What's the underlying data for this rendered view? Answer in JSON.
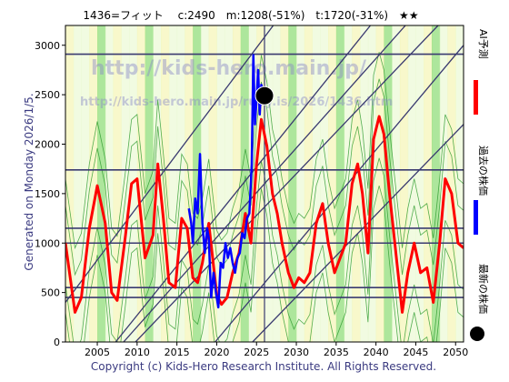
{
  "header": {
    "title": "1436=フィット　 c:2490　m:1208(-51%)　t:1720(-31%)　★★"
  },
  "side_text": "Generated on Monday 2026/1/5.",
  "watermarks": [
    "http://kids-hero.main.jp/",
    "http://kids-hero.main.jp/ruby.is/2026/1436.htm"
  ],
  "legend": [
    {
      "name": "AI予測",
      "color": "#ff0000",
      "kind": "line"
    },
    {
      "name": "過去の株価",
      "color": "#0000ff",
      "kind": "line"
    },
    {
      "name": "最新の株価",
      "color": "#000000",
      "kind": "dot"
    }
  ],
  "footer": {
    "copyright": "Copyright (c) Kids-Hero Research Institute. All Rights Reserved."
  },
  "colors": {
    "background": "#ffffff",
    "band_light": "#e6f8c8",
    "band_green": "#6ad24a",
    "band_yellow": "#f3f3a0",
    "diagonal": "#3a3a70",
    "horizontal": "#3a3a70",
    "prediction": "#ff0000",
    "history": "#0000ff"
  },
  "chart_data": {
    "type": "line",
    "title": "",
    "xlabel": "",
    "ylabel": "",
    "xlim": [
      2001.0,
      2051.0
    ],
    "ylim": [
      0,
      3200
    ],
    "x_ticks": [
      2005,
      2010,
      2015,
      2020,
      2025,
      2030,
      2035,
      2040,
      2045,
      2050
    ],
    "y_ticks": [
      0,
      500,
      1000,
      1500,
      2000,
      2500,
      3000
    ],
    "horizontal_levels": [
      2910,
      1740,
      1150,
      1000,
      550,
      450
    ],
    "vertical_lines": [
      2026.0
    ],
    "latest_price": {
      "x": 2026.0,
      "y": 2490
    },
    "diagonals": [
      {
        "x1": 2001.0,
        "y1": 400,
        "x2": 2027.1,
        "y2": 3200
      },
      {
        "x1": 2007.3,
        "y1": 0,
        "x2": 2039.3,
        "y2": 3200
      },
      {
        "x1": 2008.3,
        "y1": 0,
        "x2": 2043.7,
        "y2": 3200
      },
      {
        "x1": 2009.8,
        "y1": 0,
        "x2": 2047.8,
        "y2": 3200
      },
      {
        "x1": 2019.8,
        "y1": 0,
        "x2": 2051.0,
        "y2": 3000
      },
      {
        "x1": 2024.5,
        "y1": 0,
        "x2": 2051.0,
        "y2": 2200
      }
    ],
    "series": [
      {
        "name": "AI予測",
        "x": [
          2001.0,
          2001.6,
          2002.2,
          2003.0,
          2004.0,
          2005.0,
          2006.0,
          2006.8,
          2007.5,
          2008.5,
          2009.3,
          2010.0,
          2011.0,
          2012.0,
          2012.6,
          2013.3,
          2014.0,
          2014.8,
          2015.6,
          2016.3,
          2017.0,
          2017.6,
          2018.2,
          2019.0,
          2020.0,
          2020.6,
          2021.3,
          2022.0,
          2022.8,
          2023.6,
          2024.3,
          2025.0,
          2025.6,
          2026.3,
          2027.0,
          2027.6,
          2028.2,
          2029.0,
          2029.7,
          2030.3,
          2031.0,
          2031.7,
          2032.5,
          2033.3,
          2034.0,
          2034.8,
          2035.5,
          2036.2,
          2037.0,
          2037.7,
          2038.3,
          2039.0,
          2039.7,
          2040.4,
          2041.0,
          2041.7,
          2042.5,
          2043.3,
          2044.0,
          2044.8,
          2045.6,
          2046.4,
          2047.2,
          2048.0,
          2048.7,
          2049.5,
          2050.3,
          2051.0
        ],
        "y": [
          1000,
          650,
          300,
          450,
          1150,
          1580,
          1200,
          500,
          420,
          1050,
          1600,
          1650,
          850,
          1080,
          1800,
          1250,
          600,
          550,
          1250,
          1150,
          650,
          600,
          800,
          1200,
          480,
          380,
          450,
          700,
          900,
          1300,
          1000,
          1800,
          2250,
          1980,
          1500,
          1300,
          1000,
          700,
          550,
          650,
          600,
          700,
          1200,
          1400,
          1000,
          700,
          850,
          1000,
          1600,
          1800,
          1500,
          900,
          2050,
          2280,
          2100,
          1500,
          900,
          300,
          700,
          1000,
          700,
          750,
          400,
          1000,
          1650,
          1500,
          1000,
          950
        ]
      },
      {
        "name": "過去の株価",
        "x": [
          2016.5,
          2016.8,
          2017.0,
          2017.3,
          2017.6,
          2017.9,
          2018.2,
          2018.5,
          2018.8,
          2019.0,
          2019.3,
          2019.6,
          2019.9,
          2020.2,
          2020.5,
          2020.8,
          2021.1,
          2021.4,
          2021.7,
          2022.0,
          2022.3,
          2022.6,
          2022.9,
          2023.2,
          2023.5,
          2023.8,
          2024.1,
          2024.4,
          2024.6,
          2024.8,
          2025.0,
          2025.2,
          2025.4,
          2025.6,
          2025.8,
          2026.0
        ],
        "y": [
          1350,
          1200,
          1000,
          1450,
          1300,
          1900,
          1200,
          900,
          1150,
          1050,
          450,
          700,
          500,
          350,
          800,
          750,
          1000,
          850,
          950,
          800,
          700,
          850,
          900,
          1100,
          1050,
          1250,
          1300,
          1800,
          2900,
          2200,
          2450,
          2750,
          2300,
          2600,
          2550,
          2490
        ]
      }
    ]
  }
}
